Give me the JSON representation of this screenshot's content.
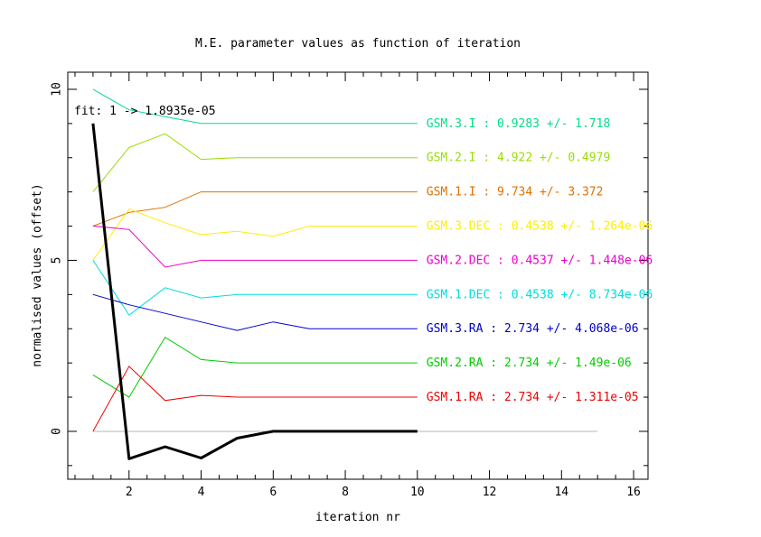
{
  "chart_data": {
    "type": "line",
    "title": "M.E. parameter values as function of iteration",
    "xlabel": "iteration nr",
    "ylabel": "normalised values (offset)",
    "xlim": [
      0.3,
      16.4
    ],
    "ylim": [
      -1.4,
      10.5
    ],
    "xticks": [
      2,
      4,
      6,
      8,
      10,
      12,
      14,
      16
    ],
    "yticks": [
      0,
      5,
      10
    ],
    "grid": false,
    "fit": {
      "label": "fit:  1 -> 1.8935e-05",
      "color": "#000000",
      "x": [
        1,
        2,
        3,
        4,
        5,
        6,
        7,
        8,
        9,
        10
      ],
      "y": [
        9.0,
        -0.8,
        -0.45,
        -0.78,
        -0.2,
        0.0,
        0.0,
        0.0,
        0.0,
        0.0
      ]
    },
    "zero_line": {
      "x": [
        1,
        15
      ],
      "y": 0,
      "color": "#b4b4b4"
    },
    "series": [
      {
        "name": "GSM.3.I : 0.9283 +/- 1.718",
        "color": "#00dd88",
        "x": [
          1,
          2,
          3,
          4,
          5,
          6,
          7,
          8,
          9,
          10
        ],
        "y": [
          10.0,
          9.4,
          9.2,
          9.0,
          9.0,
          9.0,
          9.0,
          9.0,
          9.0,
          9.0
        ]
      },
      {
        "name": "GSM.2.I : 4.922 +/- 0.4979",
        "color": "#99dd00",
        "x": [
          1,
          2,
          3,
          4,
          5,
          6,
          7,
          8,
          9,
          10
        ],
        "y": [
          7.0,
          8.3,
          8.7,
          7.95,
          8.0,
          8.0,
          8.0,
          8.0,
          8.0,
          8.0
        ]
      },
      {
        "name": "GSM.1.I : 9.734 +/- 3.372",
        "color": "#e07000",
        "x": [
          1,
          2,
          3,
          4,
          5,
          6,
          7,
          8,
          9,
          10
        ],
        "y": [
          6.0,
          6.4,
          6.55,
          7.0,
          7.0,
          7.0,
          7.0,
          7.0,
          7.0,
          7.0
        ]
      },
      {
        "name": "GSM.3.DEC : 0.4538 +/- 1.264e-06",
        "color": "#ffee00",
        "x": [
          1,
          2,
          3,
          4,
          5,
          6,
          7,
          8,
          9,
          10
        ],
        "y": [
          5.0,
          6.5,
          6.1,
          5.75,
          5.85,
          5.7,
          6.0,
          6.0,
          6.0,
          6.0
        ]
      },
      {
        "name": "GSM.2.DEC : 0.4537 +/- 1.448e-06",
        "color": "#ee00cc",
        "x": [
          1,
          2,
          3,
          4,
          5,
          6,
          7,
          8,
          9,
          10
        ],
        "y": [
          6.0,
          5.9,
          4.8,
          5.0,
          5.0,
          5.0,
          5.0,
          5.0,
          5.0,
          5.0
        ]
      },
      {
        "name": "GSM.1.DEC : 0.4538 +/- 8.734e-06",
        "color": "#00dddd",
        "x": [
          1,
          2,
          3,
          4,
          5,
          6,
          7,
          8,
          9,
          10
        ],
        "y": [
          5.0,
          3.4,
          4.2,
          3.9,
          4.0,
          4.0,
          4.0,
          4.0,
          4.0,
          4.0
        ]
      },
      {
        "name": "GSM.3.RA : 2.734 +/- 4.068e-06",
        "color": "#0000cc",
        "x": [
          1,
          2,
          3,
          4,
          5,
          6,
          7,
          8,
          9,
          10
        ],
        "y": [
          4.0,
          3.7,
          3.45,
          3.2,
          2.95,
          3.2,
          3.0,
          3.0,
          3.0,
          3.0
        ]
      },
      {
        "name": "GSM.2.RA : 2.734 +/- 1.49e-06",
        "color": "#00cc00",
        "x": [
          1,
          2,
          3,
          4,
          5,
          6,
          7,
          8,
          9,
          10
        ],
        "y": [
          1.65,
          1.0,
          2.75,
          2.1,
          2.0,
          2.0,
          2.0,
          2.0,
          2.0,
          2.0
        ]
      },
      {
        "name": "GSM.1.RA : 2.734 +/- 1.311e-05",
        "color": "#ee0000",
        "x": [
          1,
          2,
          3,
          4,
          5,
          6,
          7,
          8,
          9,
          10
        ],
        "y": [
          0.0,
          1.9,
          0.9,
          1.05,
          1.0,
          1.0,
          1.0,
          1.0,
          1.0,
          1.0
        ]
      }
    ]
  }
}
